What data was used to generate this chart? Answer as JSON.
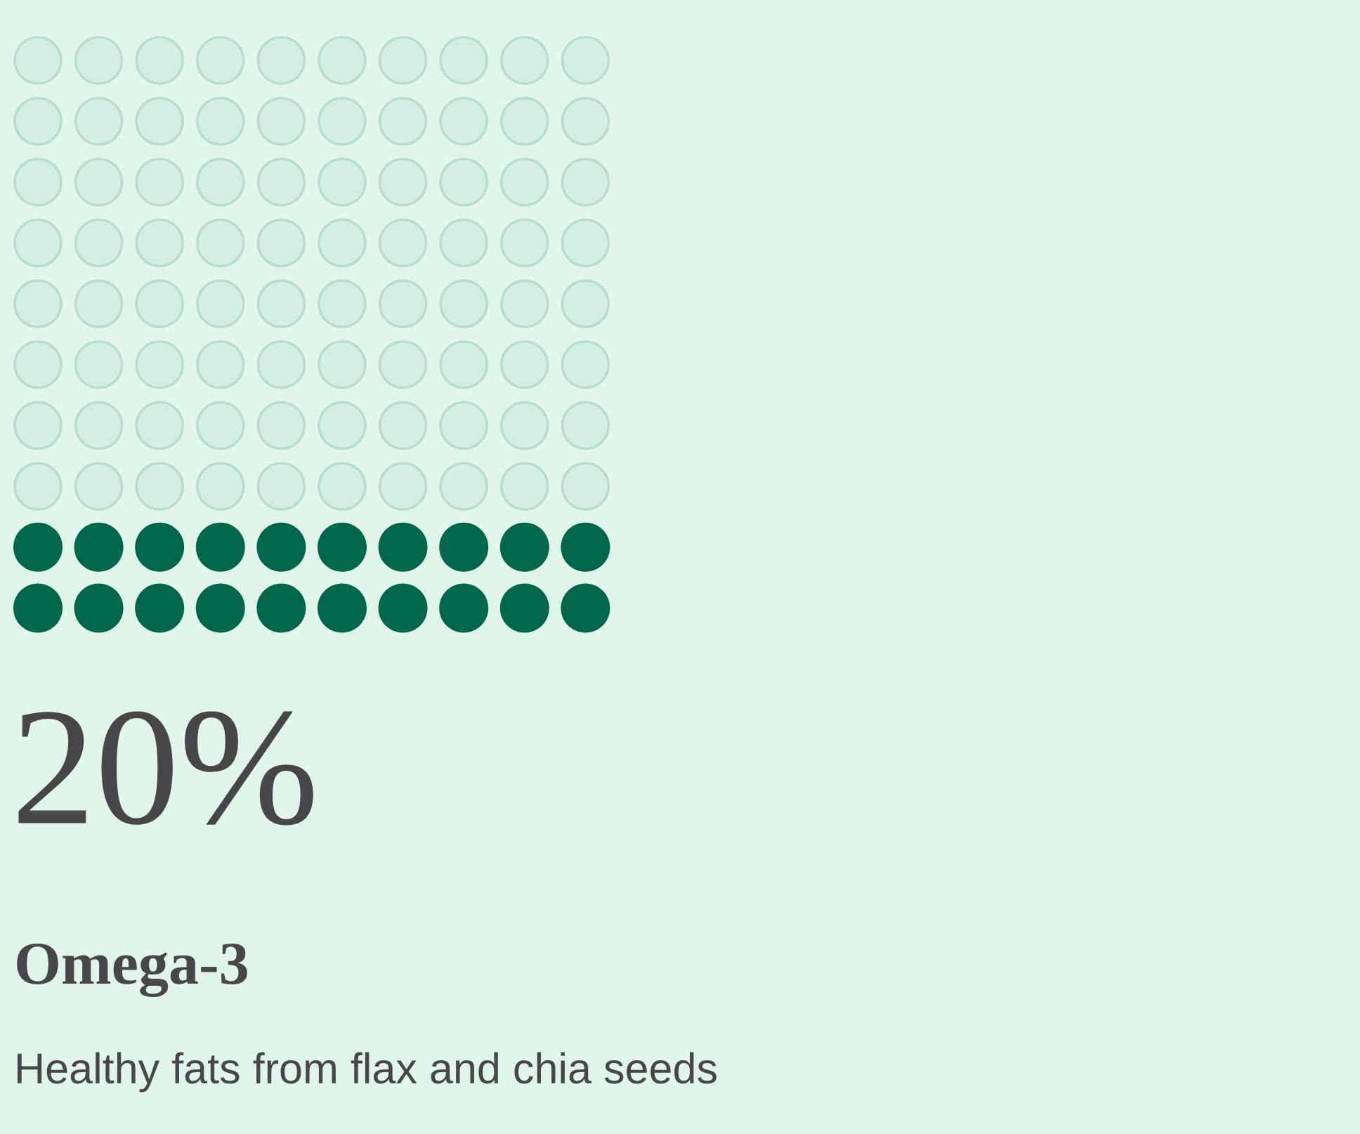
{
  "chart_data": {
    "type": "other",
    "title": "Omega-3",
    "subtitle": "Healthy fats from flax and chia seeds",
    "values": [
      20
    ],
    "value_labels": [
      "20%"
    ],
    "colors": [
      "#00674a"
    ]
  }
}
